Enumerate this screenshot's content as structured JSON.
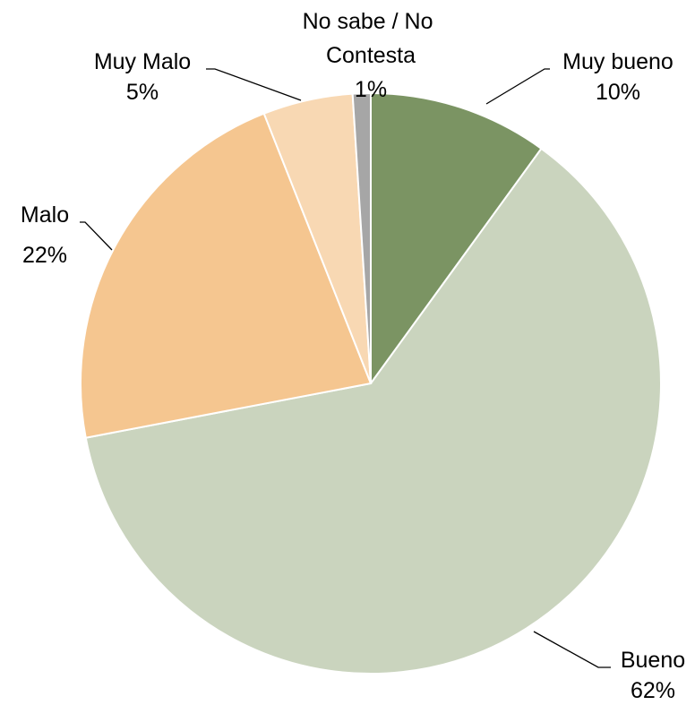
{
  "chart_data": {
    "type": "pie",
    "title": "",
    "slices": [
      {
        "name": "Muy bueno",
        "value": 10,
        "label": "10%",
        "color": "#7b9463"
      },
      {
        "name": "Bueno",
        "value": 62,
        "label": "62%",
        "color": "#cad4be"
      },
      {
        "name": "Malo",
        "value": 22,
        "label": "22%",
        "color": "#f5c690"
      },
      {
        "name": "Muy Malo",
        "value": 5,
        "label": "5%",
        "color": "#f8d8b3"
      },
      {
        "name": "No sabe / No Contesta",
        "value": 1,
        "label": "1%",
        "color": "#a6a6a6"
      }
    ],
    "legend": "none",
    "data_labels": "outside with leader lines"
  }
}
